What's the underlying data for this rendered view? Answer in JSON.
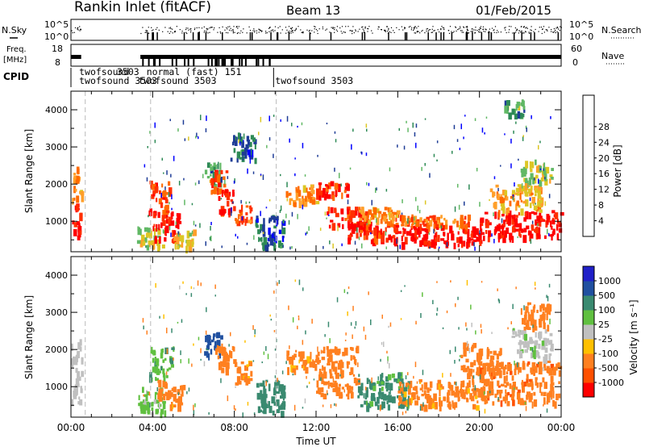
{
  "header": {
    "station": "Rankin Inlet (fitACF)",
    "beam": "Beam 13",
    "date": "01/Feb/2015"
  },
  "strip_panels": {
    "nsky_label": "N.Sky",
    "nsky_ticks": [
      "10^5",
      "10^0"
    ],
    "nsearch_label": "N.Search",
    "nsearch_ticks": [
      "10^5",
      "10^0"
    ],
    "freq_label_1": "Freq.",
    "freq_label_2": "[MHz]",
    "freq_ticks": [
      "18",
      "8"
    ],
    "nave_label": "Nave",
    "nave_ticks": [
      "60",
      "0"
    ],
    "cpid_label": "CPID",
    "cpid_entries": [
      {
        "text": "twofsound",
        "t": 0.4,
        "row": 0
      },
      {
        "text": "3503",
        "t": 2.25,
        "row": 0
      },
      {
        "text": "normal (fast) 151",
        "t": 3.7,
        "row": 0
      },
      {
        "text": "twofsound 3503",
        "t": 0.4,
        "row": 1
      },
      {
        "text": "twofsound 3503",
        "t": 3.3,
        "row": 1
      },
      {
        "text": "twofsound 3503",
        "t": 10.0,
        "row": 1
      }
    ]
  },
  "colors": {
    "power_scale": [
      "#0000ff",
      "#1e3c96",
      "#2e8a56",
      "#61b865",
      "#dcc624",
      "#ff9f2a",
      "#ff6a00",
      "#ff3000",
      "#ff0000"
    ],
    "velocity_scale": [
      "#2020c8",
      "#2050a0",
      "#3a8a70",
      "#60c040",
      "#c0c0c0",
      "#ffc000",
      "#ff8020",
      "#ff5000",
      "#ff0000"
    ],
    "ground_scatter": "#c0c0c0"
  },
  "chart_data": [
    {
      "type": "heatmap",
      "name": "power",
      "xlabel": "Time UT",
      "ylabel": "Slant Range [km]",
      "xlim": [
        0,
        24
      ],
      "ylim": [
        180,
        4500
      ],
      "x_ticks": [
        "00:00",
        "04:00",
        "08:00",
        "12:00",
        "16:00",
        "20:00",
        "00:00"
      ],
      "y_ticks": [
        1000,
        2000,
        3000,
        4000
      ],
      "colorbar": {
        "label": "Power [dB]",
        "ticks": [
          4,
          8,
          12,
          16,
          20,
          24,
          28
        ],
        "range": [
          0,
          30
        ]
      },
      "regions": [
        {
          "t": [
            0.0,
            0.5
          ],
          "r": [
            600,
            1500
          ],
          "value": 28
        },
        {
          "t": [
            0.0,
            0.5
          ],
          "r": [
            1500,
            2500
          ],
          "value": 20
        },
        {
          "t": [
            3.8,
            4.8
          ],
          "r": [
            1200,
            2100
          ],
          "value": 24
        },
        {
          "t": [
            3.2,
            4.5
          ],
          "r": [
            300,
            900
          ],
          "value": 14
        },
        {
          "t": [
            4.0,
            5.3
          ],
          "r": [
            500,
            1300
          ],
          "value": 28
        },
        {
          "t": [
            5.0,
            6.0
          ],
          "r": [
            300,
            800
          ],
          "value": 16
        },
        {
          "t": [
            6.5,
            7.3
          ],
          "r": [
            2000,
            2600
          ],
          "value": 10
        },
        {
          "t": [
            6.8,
            7.6
          ],
          "r": [
            1800,
            2400
          ],
          "value": 24
        },
        {
          "t": [
            7.2,
            8.0
          ],
          "r": [
            1300,
            1900
          ],
          "value": 26
        },
        {
          "t": [
            8.0,
            8.8
          ],
          "r": [
            1000,
            1500
          ],
          "value": 22
        },
        {
          "t": [
            7.8,
            9.0
          ],
          "r": [
            2700,
            3400
          ],
          "value": 6
        },
        {
          "t": [
            9.0,
            10.4
          ],
          "r": [
            300,
            1200
          ],
          "value": 6
        },
        {
          "t": [
            10.5,
            12.0
          ],
          "r": [
            1500,
            2000
          ],
          "value": 20
        },
        {
          "t": [
            12.0,
            13.5
          ],
          "r": [
            1700,
            2100
          ],
          "value": 26
        },
        {
          "t": [
            12.5,
            14.5
          ],
          "r": [
            900,
            1400
          ],
          "value": 26
        },
        {
          "t": [
            13.5,
            16.0
          ],
          "r": [
            500,
            1000
          ],
          "value": 26
        },
        {
          "t": [
            14.0,
            16.0
          ],
          "r": [
            1000,
            1400
          ],
          "value": 20
        },
        {
          "t": [
            16.0,
            20.0
          ],
          "r": [
            400,
            900
          ],
          "value": 29
        },
        {
          "t": [
            16.0,
            19.5
          ],
          "r": [
            900,
            1200
          ],
          "value": 22
        },
        {
          "t": [
            20.0,
            24.0
          ],
          "r": [
            600,
            1300
          ],
          "value": 29
        },
        {
          "t": [
            20.5,
            23.0
          ],
          "r": [
            1300,
            2000
          ],
          "value": 18
        },
        {
          "t": [
            22.0,
            23.5
          ],
          "r": [
            2000,
            2700
          ],
          "value": 14
        },
        {
          "t": [
            21.2,
            22.2
          ],
          "r": [
            3800,
            4300
          ],
          "value": 10
        }
      ]
    },
    {
      "type": "heatmap",
      "name": "velocity",
      "xlabel": "Time UT",
      "ylabel": "Slant Range [km]",
      "xlim": [
        0,
        24
      ],
      "ylim": [
        180,
        4500
      ],
      "x_ticks": [
        "00:00",
        "04:00",
        "08:00",
        "12:00",
        "16:00",
        "20:00",
        "00:00"
      ],
      "y_ticks": [
        1000,
        2000,
        3000,
        4000
      ],
      "colorbar": {
        "label": "Velocity [m s⁻¹]",
        "ticks": [
          "1000",
          "500",
          "100",
          "25",
          "-25",
          "-100",
          "-500",
          "-1000"
        ]
      },
      "regions": [
        {
          "t": [
            0.0,
            0.5
          ],
          "r": [
            500,
            2300
          ],
          "value": -5
        },
        {
          "t": [
            3.8,
            5.0
          ],
          "r": [
            1200,
            2100
          ],
          "value": 80
        },
        {
          "t": [
            3.2,
            4.6
          ],
          "r": [
            300,
            1000
          ],
          "value": 50
        },
        {
          "t": [
            4.2,
            5.5
          ],
          "r": [
            500,
            1200
          ],
          "value": -200
        },
        {
          "t": [
            6.5,
            7.4
          ],
          "r": [
            1900,
            2500
          ],
          "value": 700
        },
        {
          "t": [
            7.0,
            8.0
          ],
          "r": [
            1500,
            2200
          ],
          "value": -200
        },
        {
          "t": [
            8.0,
            8.8
          ],
          "r": [
            1100,
            1700
          ],
          "value": -150
        },
        {
          "t": [
            9.0,
            10.4
          ],
          "r": [
            300,
            1200
          ],
          "value": 300
        },
        {
          "t": [
            10.5,
            12.0
          ],
          "r": [
            1500,
            2000
          ],
          "value": -150
        },
        {
          "t": [
            12.0,
            14.0
          ],
          "r": [
            800,
            2100
          ],
          "value": -200
        },
        {
          "t": [
            14.0,
            16.5
          ],
          "r": [
            500,
            1400
          ],
          "value": 150
        },
        {
          "t": [
            16.0,
            20.0
          ],
          "r": [
            500,
            1200
          ],
          "value": -150
        },
        {
          "t": [
            19.0,
            21.0
          ],
          "r": [
            1300,
            2200
          ],
          "value": -300
        },
        {
          "t": [
            20.0,
            24.0
          ],
          "r": [
            600,
            1700
          ],
          "value": -400
        },
        {
          "t": [
            21.5,
            23.5
          ],
          "r": [
            1800,
            2600
          ],
          "value": 10
        },
        {
          "t": [
            22.0,
            23.5
          ],
          "r": [
            2600,
            3300
          ],
          "value": -200
        }
      ]
    }
  ]
}
